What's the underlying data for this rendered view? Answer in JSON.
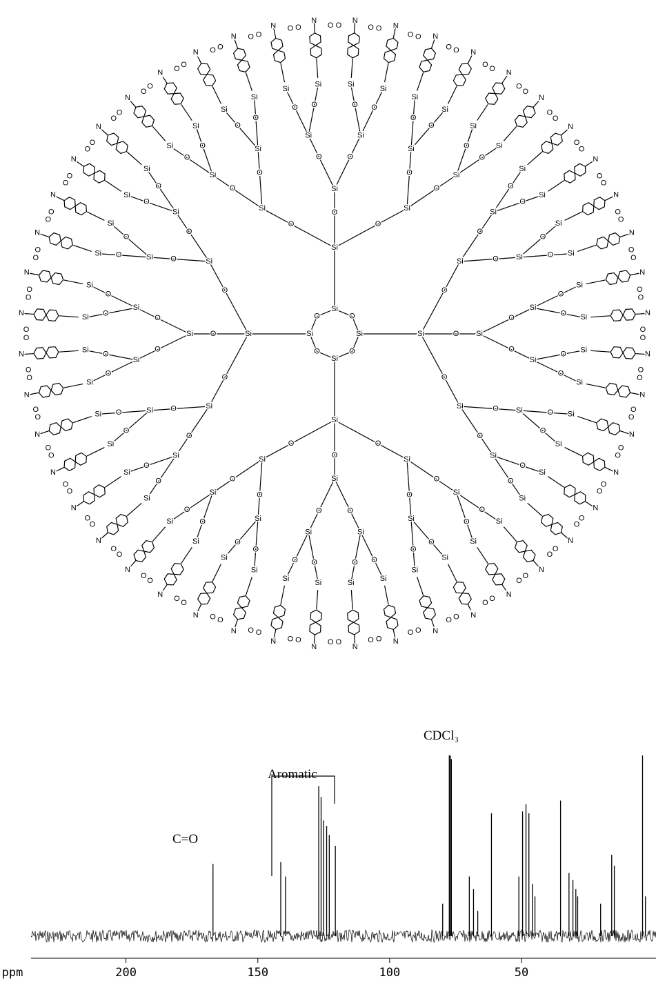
{
  "structure": {
    "labels": [
      "Si",
      "O",
      "N"
    ]
  },
  "chart_data": {
    "type": "spectrum",
    "annotations": [
      "C=O",
      "Aromatic",
      "CDCl₃"
    ],
    "xlabel": "ppm",
    "x": [
      167.0,
      141.3,
      139.5,
      126.9,
      126.0,
      125.0,
      123.9,
      122.9,
      120.6,
      79.9,
      77.4,
      77.0,
      76.6,
      69.8,
      68.2,
      66.6,
      61.4,
      51.0,
      49.6,
      48.3,
      47.2,
      45.9,
      44.9,
      35.2,
      32.0,
      30.5,
      29.4,
      28.7,
      20.0,
      15.8,
      14.8,
      4.1,
      3.0
    ],
    "values": [
      40,
      41,
      33,
      83,
      77,
      64,
      61,
      56,
      50,
      18,
      100,
      100,
      98,
      33,
      26,
      14,
      68,
      33,
      69,
      73,
      68,
      29,
      22,
      75,
      35,
      31,
      26,
      22,
      18,
      45,
      39,
      100,
      22
    ],
    "color": "#000000",
    "xlim": [
      236,
      -1
    ],
    "xticks": [
      200,
      150,
      100,
      50
    ],
    "ylim": [
      0,
      100
    ]
  }
}
